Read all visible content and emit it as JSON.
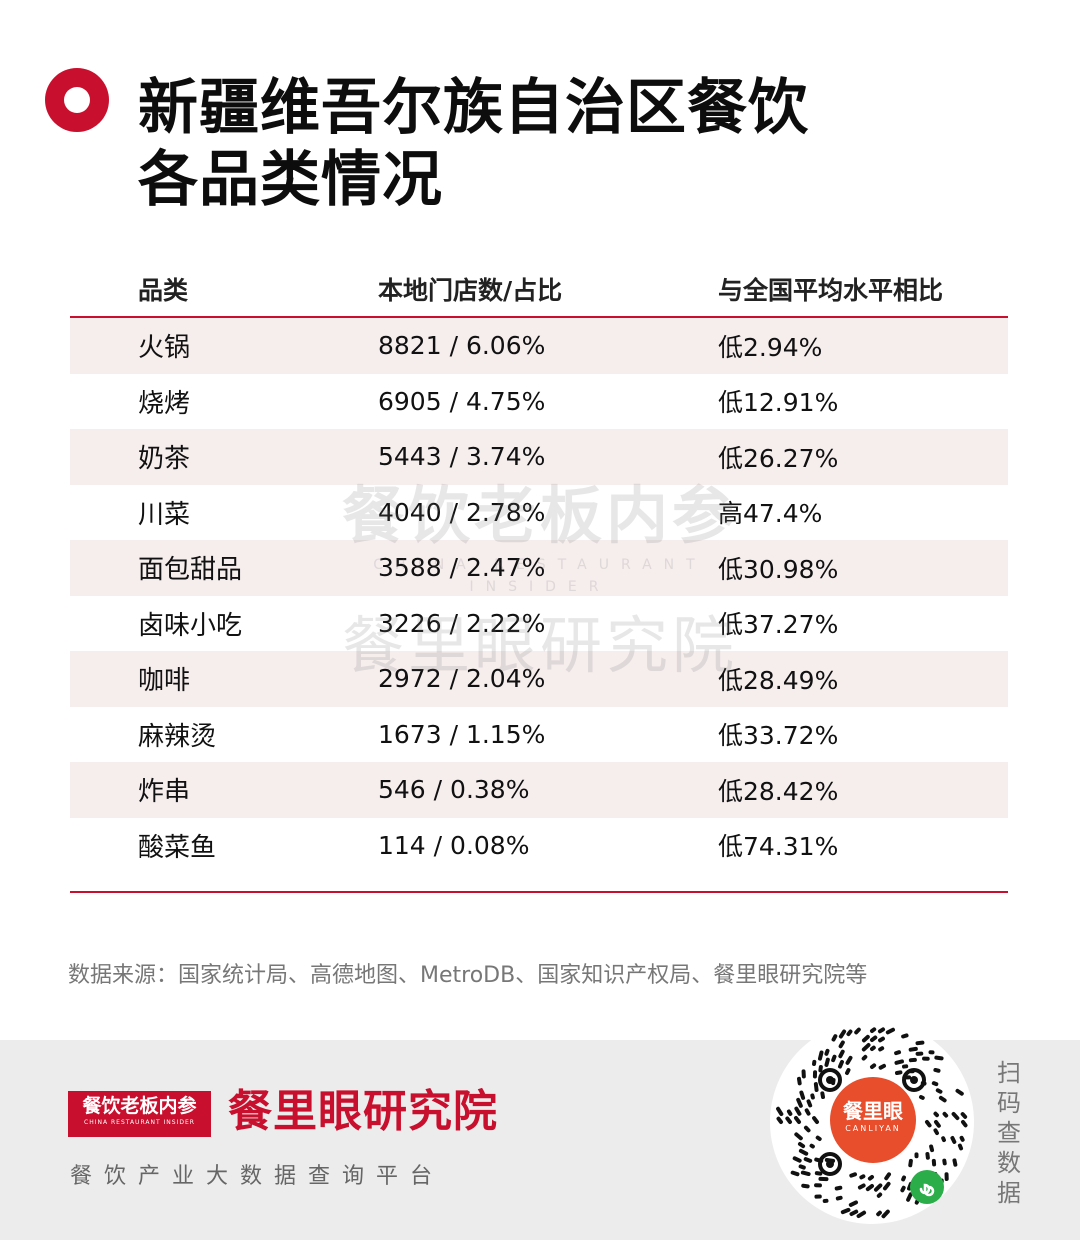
{
  "title": {
    "line1": "新疆维吾尔族自治区餐饮",
    "line2": "各品类情况"
  },
  "table": {
    "headers": [
      "品类",
      "本地门店数/占比",
      "与全国平均水平相比"
    ],
    "rows": [
      [
        "火锅",
        "8821 / 6.06%",
        "低2.94%"
      ],
      [
        "烧烤",
        "6905 / 4.75%",
        "低12.91%"
      ],
      [
        "奶茶",
        "5443 / 3.74%",
        "低26.27%"
      ],
      [
        "川菜",
        "4040 / 2.78%",
        "高47.4%"
      ],
      [
        "面包甜品",
        "3588 / 2.47%",
        "低30.98%"
      ],
      [
        "卤味小吃",
        "3226 / 2.22%",
        "低37.27%"
      ],
      [
        "咖啡",
        "2972 / 2.04%",
        "低28.49%"
      ],
      [
        "麻辣烫",
        "1673 / 1.15%",
        "低33.72%"
      ],
      [
        "炸串",
        "546 / 0.38%",
        "低28.42%"
      ],
      [
        "酸菜鱼",
        "114 / 0.08%",
        "低74.31%"
      ]
    ]
  },
  "watermark": {
    "line1": "餐饮老板内参",
    "line2": "CHINA RESTAURANT INSIDER",
    "line3": "餐里眼研究院"
  },
  "source": "数据来源：国家统计局、高德地图、MetroDB、国家知识产权局、餐里眼研究院等",
  "footer": {
    "badge_title": "餐饮老板内参",
    "badge_sub": "CHINA RESTAURANT INSIDER",
    "brand": "餐里眼研究院",
    "tagline": "餐饮产业大数据查询平台",
    "qr_label": "餐里眼",
    "qr_sub": "CANLIYAN",
    "scan": [
      "扫",
      "码",
      "查",
      "数",
      "据"
    ]
  },
  "colors": {
    "accent": "#c8102e",
    "shade": "#f6eded",
    "footer_bg": "#ececec",
    "qr_center": "#e84d2c"
  }
}
